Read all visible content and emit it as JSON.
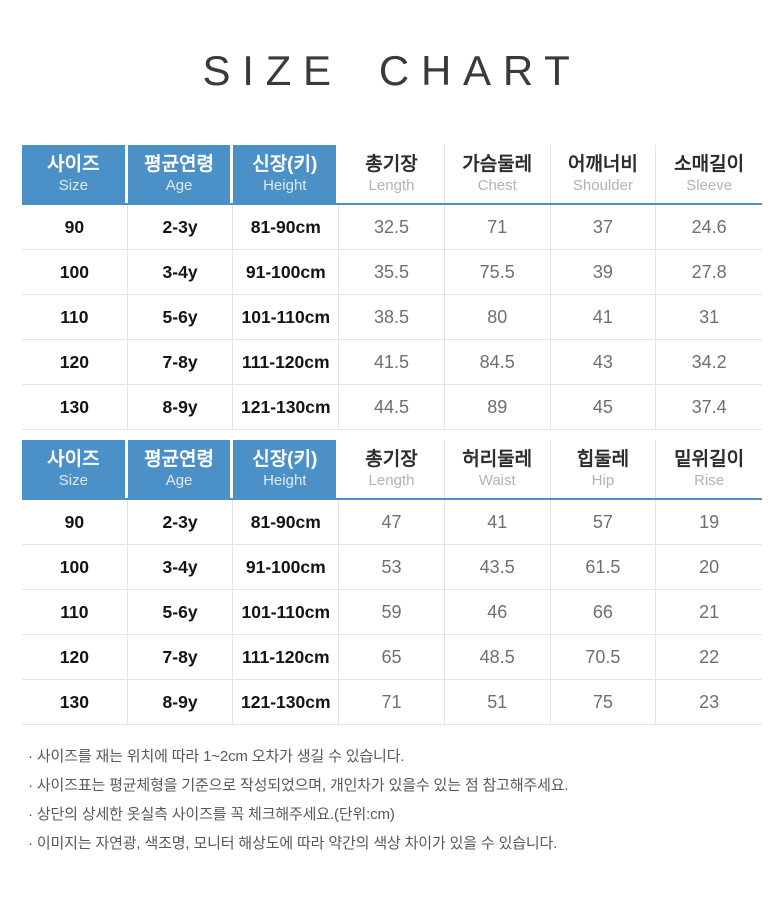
{
  "page_title": "SIZE CHART",
  "accent_color": "#4b90c7",
  "tables": [
    {
      "name": "top-garment",
      "columns": [
        {
          "ko": "사이즈",
          "en": "Size",
          "highlight": true
        },
        {
          "ko": "평균연령",
          "en": "Age",
          "highlight": true
        },
        {
          "ko": "신장(키)",
          "en": "Height",
          "highlight": true
        },
        {
          "ko": "총기장",
          "en": "Length",
          "highlight": false
        },
        {
          "ko": "가슴둘레",
          "en": "Chest",
          "highlight": false
        },
        {
          "ko": "어깨너비",
          "en": "Shoulder",
          "highlight": false
        },
        {
          "ko": "소매길이",
          "en": "Sleeve",
          "highlight": false
        }
      ],
      "rows": [
        [
          "90",
          "2-3y",
          "81-90cm",
          "32.5",
          "71",
          "37",
          "24.6"
        ],
        [
          "100",
          "3-4y",
          "91-100cm",
          "35.5",
          "75.5",
          "39",
          "27.8"
        ],
        [
          "110",
          "5-6y",
          "101-110cm",
          "38.5",
          "80",
          "41",
          "31"
        ],
        [
          "120",
          "7-8y",
          "111-120cm",
          "41.5",
          "84.5",
          "43",
          "34.2"
        ],
        [
          "130",
          "8-9y",
          "121-130cm",
          "44.5",
          "89",
          "45",
          "37.4"
        ]
      ]
    },
    {
      "name": "bottom-garment",
      "columns": [
        {
          "ko": "사이즈",
          "en": "Size",
          "highlight": true
        },
        {
          "ko": "평균연령",
          "en": "Age",
          "highlight": true
        },
        {
          "ko": "신장(키)",
          "en": "Height",
          "highlight": true
        },
        {
          "ko": "총기장",
          "en": "Length",
          "highlight": false
        },
        {
          "ko": "허리둘레",
          "en": "Waist",
          "highlight": false
        },
        {
          "ko": "힙둘레",
          "en": "Hip",
          "highlight": false
        },
        {
          "ko": "밑위길이",
          "en": "Rise",
          "highlight": false
        }
      ],
      "rows": [
        [
          "90",
          "2-3y",
          "81-90cm",
          "47",
          "41",
          "57",
          "19"
        ],
        [
          "100",
          "3-4y",
          "91-100cm",
          "53",
          "43.5",
          "61.5",
          "20"
        ],
        [
          "110",
          "5-6y",
          "101-110cm",
          "59",
          "46",
          "66",
          "21"
        ],
        [
          "120",
          "7-8y",
          "111-120cm",
          "65",
          "48.5",
          "70.5",
          "22"
        ],
        [
          "130",
          "8-9y",
          "121-130cm",
          "71",
          "51",
          "75",
          "23"
        ]
      ]
    }
  ],
  "notes": [
    "· 사이즈를 재는 위치에 따라 1~2cm 오차가 생길 수 있습니다.",
    "· 사이즈표는 평균체형을 기준으로 작성되었으며, 개인차가 있을수 있는 점 참고해주세요.",
    "· 상단의 상세한 옷실측 사이즈를 꼭 체크해주세요.(단위:cm)",
    "· 이미지는 자연광, 색조명, 모니터 해상도에 따라 약간의 색상 차이가 있을 수 있습니다."
  ]
}
